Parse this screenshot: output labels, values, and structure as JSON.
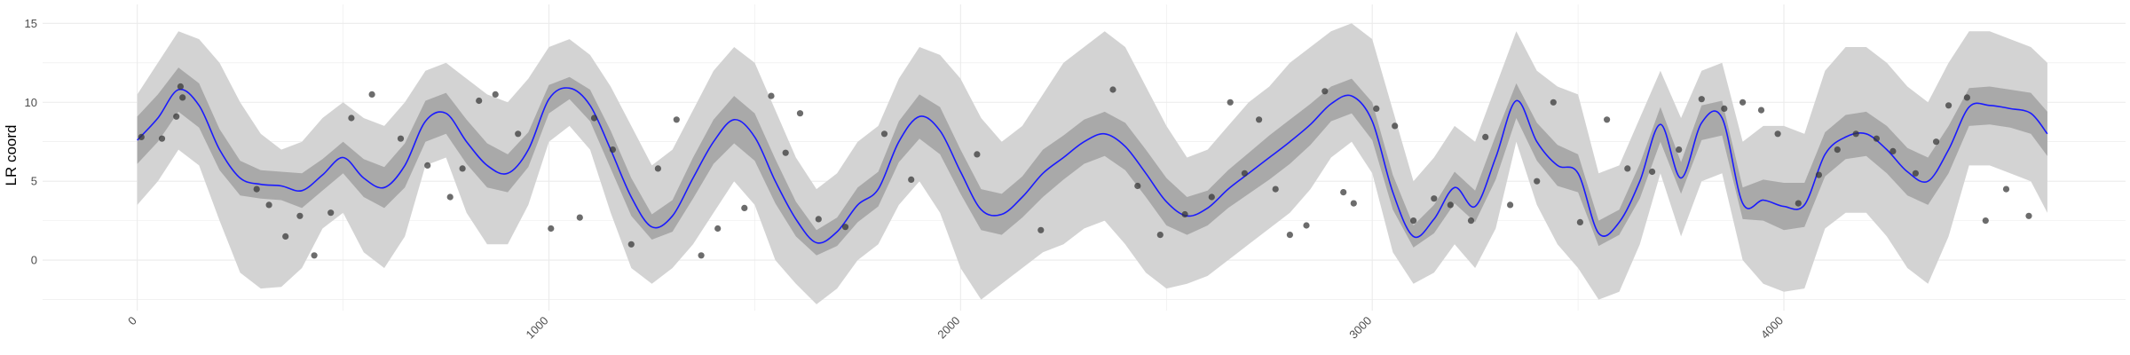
{
  "chart_data": {
    "type": "line",
    "title": "",
    "xlabel": "",
    "ylabel": "LR coord",
    "xlim": [
      -230,
      4830
    ],
    "ylim": [
      -3.2,
      16.2
    ],
    "grid": true,
    "legend": "none",
    "x_ticks": [
      {
        "value": 0,
        "label": "0"
      },
      {
        "value": 1000,
        "label": "1000"
      },
      {
        "value": 2000,
        "label": "2000"
      },
      {
        "value": 3000,
        "label": "3000"
      },
      {
        "value": 4000,
        "label": "4000"
      }
    ],
    "y_ticks": [
      {
        "value": 0,
        "label": "0"
      },
      {
        "value": 5,
        "label": "5"
      },
      {
        "value": 10,
        "label": "10"
      },
      {
        "value": 15,
        "label": "15"
      }
    ],
    "colors": {
      "mean_line": "#1a1aff",
      "inner_band": "#a9a9a9",
      "outer_band": "#d3d3d3",
      "points": "#333333",
      "grid": "#ebebeb"
    },
    "series": [
      {
        "role": "mean",
        "x": [
          0,
          50,
          100,
          150,
          200,
          250,
          300,
          350,
          400,
          450,
          500,
          550,
          600,
          650,
          700,
          750,
          800,
          850,
          900,
          950,
          1000,
          1050,
          1100,
          1150,
          1200,
          1250,
          1300,
          1350,
          1400,
          1450,
          1500,
          1550,
          1600,
          1650,
          1700,
          1750,
          1800,
          1850,
          1900,
          1950,
          2000,
          2050,
          2100,
          2150,
          2200,
          2250,
          2300,
          2350,
          2400,
          2450,
          2500,
          2550,
          2600,
          2650,
          2700,
          2750,
          2800,
          2850,
          2900,
          2950,
          3000,
          3050,
          3100,
          3150,
          3200,
          3250,
          3300,
          3350,
          3400,
          3450,
          3500,
          3550,
          3600,
          3650,
          3700,
          3750,
          3800,
          3850,
          3900,
          3950,
          4000,
          4050,
          4100,
          4150,
          4200,
          4250,
          4300,
          4350,
          4400,
          4450,
          4500,
          4550,
          4600,
          4640
        ],
        "values": [
          7.6,
          9.0,
          10.8,
          9.8,
          7.0,
          5.2,
          4.8,
          4.7,
          4.4,
          5.4,
          6.5,
          5.2,
          4.6,
          6.0,
          8.8,
          9.3,
          7.5,
          6.0,
          5.5,
          7.0,
          10.2,
          10.9,
          9.8,
          7.0,
          4.0,
          2.1,
          2.8,
          5.2,
          7.5,
          8.9,
          7.8,
          5.0,
          2.6,
          1.1,
          1.8,
          3.5,
          4.5,
          7.5,
          9.1,
          8.2,
          5.6,
          3.2,
          2.9,
          4.0,
          5.5,
          6.5,
          7.5,
          8.0,
          7.2,
          5.5,
          3.7,
          2.8,
          3.3,
          4.5,
          5.5,
          6.5,
          7.5,
          8.6,
          9.9,
          10.4,
          8.8,
          4.3,
          1.5,
          2.6,
          4.6,
          3.4,
          6.5,
          10.1,
          7.5,
          6.0,
          5.5,
          1.7,
          2.4,
          5.0,
          8.6,
          5.2,
          8.7,
          9.0,
          3.6,
          3.8,
          3.4,
          3.5,
          6.7,
          7.8,
          8.0,
          7.0,
          5.6,
          5.0,
          7.0,
          9.7,
          9.8,
          9.6,
          9.3,
          8.0
        ],
        "lower_inner": [
          6.1,
          7.5,
          9.4,
          8.4,
          5.7,
          4.1,
          3.9,
          3.8,
          3.3,
          4.4,
          5.5,
          4.0,
          3.3,
          4.6,
          7.5,
          8.0,
          6.1,
          4.6,
          4.3,
          5.9,
          9.3,
          10.2,
          8.8,
          5.8,
          2.8,
          1.3,
          1.8,
          3.9,
          6.1,
          7.4,
          6.3,
          3.6,
          1.5,
          0.3,
          0.9,
          2.4,
          3.4,
          6.2,
          7.7,
          6.7,
          4.2,
          1.9,
          1.6,
          2.7,
          4.0,
          5.1,
          6.1,
          6.6,
          5.7,
          4.0,
          2.2,
          1.6,
          2.2,
          3.3,
          4.2,
          5.1,
          6.1,
          7.3,
          8.8,
          9.3,
          7.6,
          3.2,
          0.8,
          1.7,
          3.6,
          2.4,
          5.1,
          9.0,
          6.3,
          4.7,
          4.3,
          0.9,
          1.6,
          3.9,
          7.5,
          4.2,
          7.6,
          7.9,
          2.6,
          2.5,
          1.9,
          2.1,
          5.3,
          6.4,
          6.6,
          5.5,
          4.1,
          3.5,
          5.5,
          8.5,
          8.6,
          8.4,
          8.0,
          6.6
        ],
        "upper_inner": [
          9.1,
          10.5,
          12.2,
          11.2,
          8.3,
          6.3,
          5.7,
          5.6,
          5.5,
          6.4,
          7.5,
          6.4,
          5.9,
          7.4,
          10.1,
          10.6,
          8.9,
          7.4,
          6.7,
          8.1,
          11.1,
          11.6,
          10.8,
          8.2,
          5.2,
          2.9,
          3.8,
          6.5,
          8.9,
          10.4,
          9.3,
          6.4,
          3.7,
          1.9,
          2.7,
          4.6,
          5.6,
          8.8,
          10.5,
          9.7,
          7.0,
          4.5,
          4.2,
          5.3,
          7.0,
          7.9,
          8.9,
          9.4,
          8.7,
          7.0,
          5.2,
          4.0,
          4.4,
          5.7,
          6.8,
          7.9,
          8.9,
          9.9,
          11.0,
          11.5,
          10.0,
          5.4,
          2.2,
          3.5,
          5.6,
          4.4,
          7.9,
          11.2,
          8.7,
          7.3,
          6.7,
          2.5,
          3.2,
          6.1,
          9.7,
          6.2,
          9.8,
          10.1,
          4.6,
          5.1,
          4.9,
          4.9,
          8.1,
          9.2,
          9.4,
          8.5,
          7.1,
          6.5,
          8.5,
          10.9,
          11.0,
          10.8,
          10.6,
          9.4
        ],
        "lower_outer": [
          3.5,
          5.0,
          7.0,
          6.0,
          2.5,
          -0.8,
          -1.8,
          -1.7,
          -0.5,
          2.0,
          3.0,
          0.5,
          -0.5,
          1.5,
          6.0,
          6.5,
          3.0,
          1.0,
          1.0,
          3.5,
          7.5,
          8.5,
          7.0,
          3.0,
          -0.5,
          -1.5,
          -0.5,
          1.0,
          3.0,
          5.0,
          3.5,
          0.0,
          -1.5,
          -2.8,
          -1.8,
          0.0,
          1.0,
          3.5,
          5.0,
          3.0,
          -0.5,
          -2.5,
          -1.5,
          -0.5,
          0.5,
          1.0,
          2.0,
          2.5,
          1.0,
          -0.8,
          -1.8,
          -1.5,
          -1.0,
          0.0,
          1.0,
          2.0,
          3.0,
          4.5,
          6.5,
          7.5,
          5.5,
          0.5,
          -1.5,
          -0.8,
          1.0,
          -0.5,
          2.0,
          7.5,
          3.5,
          1.0,
          -0.5,
          -2.5,
          -2.0,
          1.0,
          5.5,
          1.5,
          5.0,
          5.5,
          0.0,
          -1.5,
          -2.0,
          -1.8,
          2.0,
          3.0,
          3.0,
          1.5,
          -0.5,
          -1.5,
          1.5,
          6.0,
          6.0,
          5.5,
          5.0,
          3.0
        ],
        "upper_outer": [
          10.5,
          12.5,
          14.5,
          14.0,
          12.5,
          10.0,
          8.0,
          7.0,
          7.5,
          9.0,
          10.0,
          9.0,
          8.5,
          10.0,
          12.0,
          12.5,
          11.5,
          10.5,
          10.0,
          11.5,
          13.5,
          14.0,
          13.0,
          11.0,
          8.5,
          6.0,
          7.0,
          9.5,
          12.0,
          13.5,
          12.5,
          9.5,
          6.5,
          4.5,
          5.5,
          7.5,
          8.5,
          11.5,
          13.5,
          13.0,
          11.5,
          9.0,
          7.5,
          8.5,
          10.5,
          12.5,
          13.5,
          14.5,
          13.5,
          11.0,
          8.5,
          6.5,
          7.0,
          8.5,
          10.0,
          11.0,
          12.5,
          13.5,
          14.5,
          15.0,
          14.0,
          9.5,
          5.0,
          6.5,
          8.5,
          7.5,
          11.0,
          14.5,
          12.0,
          11.0,
          10.5,
          5.5,
          6.0,
          9.0,
          12.0,
          9.0,
          12.0,
          12.5,
          7.5,
          8.5,
          8.5,
          8.0,
          12.0,
          13.5,
          13.5,
          12.5,
          11.0,
          10.0,
          12.5,
          14.5,
          14.5,
          14.0,
          13.5,
          12.5
        ]
      },
      {
        "role": "observations",
        "type": "scatter",
        "x": [
          10,
          60,
          95,
          105,
          110,
          290,
          320,
          360,
          395,
          430,
          470,
          520,
          570,
          640,
          705,
          760,
          790,
          830,
          870,
          925,
          1005,
          1075,
          1110,
          1155,
          1200,
          1265,
          1310,
          1370,
          1410,
          1475,
          1540,
          1575,
          1610,
          1655,
          1720,
          1815,
          1880,
          2040,
          2195,
          2370,
          2430,
          2485,
          2545,
          2610,
          2655,
          2690,
          2725,
          2765,
          2800,
          2840,
          2885,
          2930,
          2955,
          3010,
          3055,
          3100,
          3150,
          3190,
          3240,
          3275,
          3335,
          3400,
          3440,
          3505,
          3570,
          3620,
          3680,
          3745,
          3800,
          3855,
          3900,
          3945,
          3985,
          4035,
          4085,
          4130,
          4175,
          4225,
          4265,
          4320,
          4370,
          4400,
          4445,
          4490,
          4540,
          4595
        ],
        "values": [
          7.8,
          7.7,
          9.1,
          11.0,
          10.3,
          4.5,
          3.5,
          1.5,
          2.8,
          0.3,
          3.0,
          9.0,
          10.5,
          7.7,
          6.0,
          4.0,
          5.8,
          10.1,
          10.5,
          8.0,
          2.0,
          2.7,
          9.0,
          7.0,
          1.0,
          5.8,
          8.9,
          0.3,
          2.0,
          3.3,
          10.4,
          6.8,
          9.3,
          2.6,
          2.1,
          8.0,
          5.1,
          6.7,
          1.9,
          10.8,
          4.7,
          1.6,
          2.9,
          4.0,
          10.0,
          5.5,
          8.9,
          4.5,
          1.6,
          2.2,
          10.7,
          4.3,
          3.6,
          9.6,
          8.5,
          2.5,
          3.9,
          3.5,
          2.5,
          7.8,
          3.5,
          5.0,
          10.0,
          2.4,
          8.9,
          5.8,
          5.6,
          7.0,
          10.2,
          9.6,
          10.0,
          9.5,
          8.0,
          3.6,
          5.4,
          7.0,
          8.0,
          7.7,
          6.9,
          5.5,
          7.5,
          9.8,
          10.3,
          2.5,
          4.5,
          2.8
        ]
      }
    ]
  }
}
